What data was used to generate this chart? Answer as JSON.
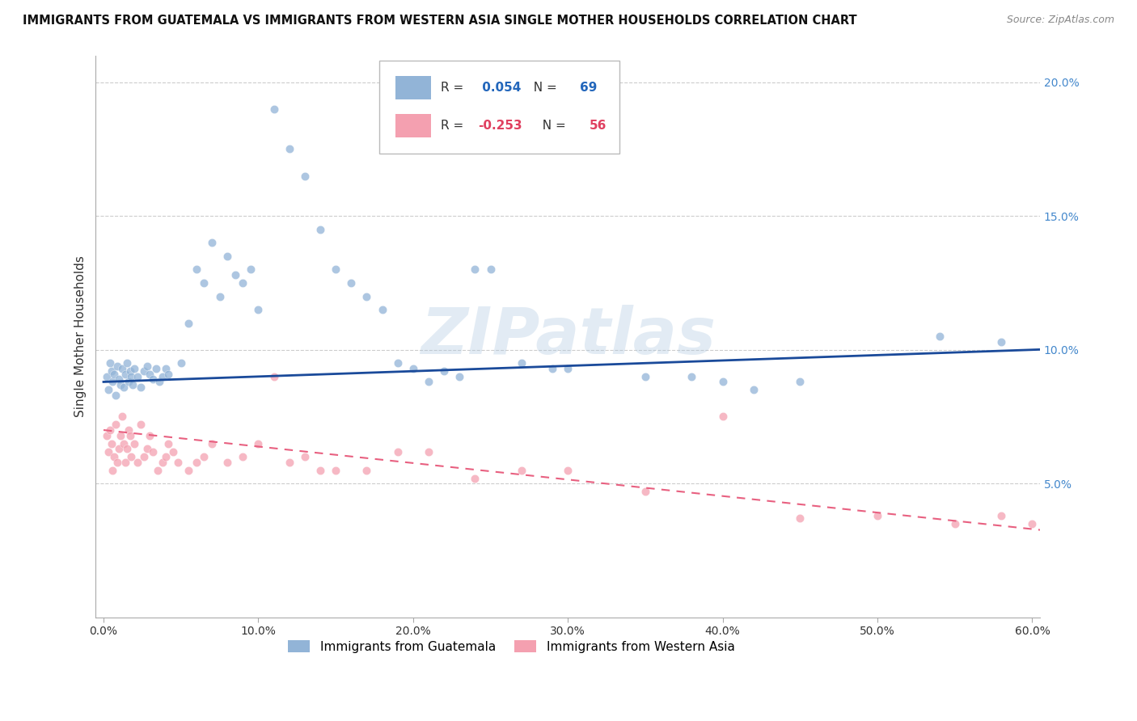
{
  "title": "IMMIGRANTS FROM GUATEMALA VS IMMIGRANTS FROM WESTERN ASIA SINGLE MOTHER HOUSEHOLDS CORRELATION CHART",
  "source": "Source: ZipAtlas.com",
  "ylabel": "Single Mother Households",
  "blue_R": 0.054,
  "blue_N": 69,
  "pink_R": -0.253,
  "pink_N": 56,
  "blue_color": "#92b4d7",
  "pink_color": "#f4a0b0",
  "blue_line_color": "#1a4a9a",
  "pink_line_color": "#e86080",
  "watermark": "ZIPatlas",
  "xlim": [
    0.0,
    0.6
  ],
  "ylim": [
    0.0,
    0.21
  ],
  "x_ticks": [
    0.0,
    0.1,
    0.2,
    0.3,
    0.4,
    0.5,
    0.6
  ],
  "x_tick_labels": [
    "0.0%",
    "10.0%",
    "20.0%",
    "30.0%",
    "40.0%",
    "50.0%",
    "60.0%"
  ],
  "y_ticks": [
    0.05,
    0.1,
    0.15,
    0.2
  ],
  "y_tick_labels": [
    "5.0%",
    "10.0%",
    "15.0%",
    "20.0%"
  ],
  "blue_line_x0": 0.0,
  "blue_line_x1": 0.6,
  "blue_line_y0": 0.088,
  "blue_line_y1": 0.1,
  "pink_line_x0": 0.0,
  "pink_line_x1": 0.6,
  "pink_line_y0": 0.07,
  "pink_line_y1": 0.033,
  "legend_blue_label": "Immigrants from Guatemala",
  "legend_pink_label": "Immigrants from Western Asia"
}
